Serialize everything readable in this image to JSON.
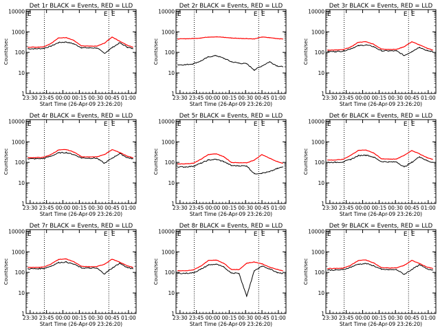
{
  "x_tick_labels": [
    "23:30",
    "23:45",
    "00:00",
    "00:15",
    "00:30",
    "00:45",
    "01:00"
  ],
  "y_tick_labels": [
    "1",
    "10",
    "100",
    "1000",
    "10000"
  ],
  "xlabel": "Start Time (26-Apr-09 23:26:20)",
  "ylabel": "Counts/sec",
  "marker_labels": [
    "E",
    "E",
    "E"
  ],
  "colors": {
    "events": "#000000",
    "lld": "#ff0000",
    "dotted": "#000000"
  },
  "chart_data": [
    {
      "type": "line",
      "title": "Det 1r BLACK = Events, RED = LLD",
      "xlim": [
        "23:26:20",
        "01:07:00"
      ],
      "ylim": [
        1,
        12000
      ],
      "yscale": "log",
      "x": [
        "23:28",
        "23:35",
        "23:42",
        "23:49",
        "23:56",
        "00:03",
        "00:10",
        "00:17",
        "00:24",
        "00:31",
        "00:38",
        "00:45",
        "00:52",
        "00:59",
        "01:04"
      ],
      "series": [
        {
          "name": "Events",
          "values": [
            150,
            150,
            155,
            200,
            300,
            320,
            260,
            170,
            165,
            165,
            90,
            170,
            290,
            180,
            150
          ]
        },
        {
          "name": "LLD",
          "values": [
            180,
            180,
            185,
            270,
            500,
            530,
            380,
            205,
            200,
            200,
            280,
            560,
            350,
            220,
            180
          ]
        }
      ]
    },
    {
      "type": "line",
      "title": "Det 2r BLACK = Events, RED = LLD",
      "xlim": [
        "23:26:20",
        "01:07:00"
      ],
      "ylim": [
        1,
        12000
      ],
      "yscale": "log",
      "x": [
        "23:28",
        "23:35",
        "23:42",
        "23:49",
        "23:56",
        "00:03",
        "00:10",
        "00:17",
        "00:24",
        "00:31",
        "00:38",
        "00:45",
        "00:52",
        "00:59",
        "01:04"
      ],
      "series": [
        {
          "name": "Events",
          "values": [
            25,
            25,
            28,
            38,
            60,
            70,
            52,
            35,
            30,
            28,
            14,
            22,
            35,
            22,
            20
          ]
        },
        {
          "name": "LLD",
          "values": [
            450,
            460,
            470,
            500,
            560,
            570,
            540,
            500,
            480,
            470,
            450,
            560,
            520,
            470,
            450
          ]
        }
      ]
    },
    {
      "type": "line",
      "title": "Det 3r BLACK = Events, RED = LLD",
      "xlim": [
        "23:26:20",
        "01:07:00"
      ],
      "ylim": [
        1,
        12000
      ],
      "yscale": "log",
      "x": [
        "23:28",
        "23:35",
        "23:42",
        "23:49",
        "23:56",
        "00:03",
        "00:10",
        "00:17",
        "00:24",
        "00:31",
        "00:38",
        "00:45",
        "00:52",
        "00:59",
        "01:04"
      ],
      "series": [
        {
          "name": "Events",
          "values": [
            110,
            110,
            115,
            150,
            210,
            230,
            190,
            120,
            118,
            118,
            70,
            110,
            180,
            120,
            110
          ]
        },
        {
          "name": "LLD",
          "values": [
            130,
            130,
            135,
            180,
            310,
            330,
            250,
            145,
            140,
            140,
            190,
            330,
            230,
            160,
            130
          ]
        }
      ]
    },
    {
      "type": "line",
      "title": "Det 4r BLACK = Events, RED = LLD",
      "xlim": [
        "23:26:20",
        "01:07:00"
      ],
      "ylim": [
        1,
        12000
      ],
      "yscale": "log",
      "x": [
        "23:28",
        "23:35",
        "23:42",
        "23:49",
        "23:56",
        "00:03",
        "00:10",
        "00:17",
        "00:24",
        "00:31",
        "00:38",
        "00:45",
        "00:52",
        "00:59",
        "01:04"
      ],
      "series": [
        {
          "name": "Events",
          "values": [
            150,
            150,
            155,
            200,
            290,
            300,
            240,
            165,
            160,
            160,
            90,
            160,
            270,
            170,
            150
          ]
        },
        {
          "name": "LLD",
          "values": [
            170,
            170,
            175,
            240,
            400,
            420,
            320,
            190,
            185,
            185,
            240,
            420,
            300,
            200,
            170
          ]
        }
      ]
    },
    {
      "type": "line",
      "title": "Det 5r BLACK = Events, RED = LLD",
      "xlim": [
        "23:26:20",
        "01:07:00"
      ],
      "ylim": [
        1,
        12000
      ],
      "yscale": "log",
      "x": [
        "23:28",
        "23:35",
        "23:42",
        "23:49",
        "23:56",
        "00:03",
        "00:10",
        "00:17",
        "00:24",
        "00:31",
        "00:38",
        "00:45",
        "00:52",
        "00:59",
        "01:04"
      ],
      "series": [
        {
          "name": "Events",
          "values": [
            60,
            60,
            65,
            90,
            130,
            140,
            110,
            70,
            68,
            68,
            28,
            30,
            35,
            50,
            60
          ]
        },
        {
          "name": "LLD",
          "values": [
            85,
            85,
            90,
            140,
            240,
            260,
            190,
            100,
            95,
            95,
            130,
            240,
            160,
            110,
            90
          ]
        }
      ]
    },
    {
      "type": "line",
      "title": "Det 6r BLACK = Events, RED = LLD",
      "xlim": [
        "23:26:20",
        "01:07:00"
      ],
      "ylim": [
        1,
        12000
      ],
      "yscale": "log",
      "x": [
        "23:28",
        "23:35",
        "23:42",
        "23:49",
        "23:56",
        "00:03",
        "00:10",
        "00:17",
        "00:24",
        "00:31",
        "00:38",
        "00:45",
        "00:52",
        "00:59",
        "01:04"
      ],
      "series": [
        {
          "name": "Events",
          "values": [
            100,
            100,
            105,
            140,
            210,
            230,
            180,
            110,
            105,
            105,
            60,
            100,
            190,
            120,
            100
          ]
        },
        {
          "name": "LLD",
          "values": [
            130,
            130,
            140,
            220,
            380,
            400,
            290,
            150,
            145,
            145,
            220,
            380,
            260,
            170,
            140
          ]
        }
      ]
    },
    {
      "type": "line",
      "title": "Det 7r BLACK = Events, RED = LLD",
      "xlim": [
        "23:26:20",
        "01:07:00"
      ],
      "ylim": [
        1,
        12000
      ],
      "yscale": "log",
      "x": [
        "23:28",
        "23:35",
        "23:42",
        "23:49",
        "23:56",
        "00:03",
        "00:10",
        "00:17",
        "00:24",
        "00:31",
        "00:38",
        "00:45",
        "00:52",
        "00:59",
        "01:04"
      ],
      "series": [
        {
          "name": "Events",
          "values": [
            150,
            150,
            155,
            200,
            300,
            320,
            250,
            165,
            160,
            160,
            85,
            160,
            280,
            170,
            150
          ]
        },
        {
          "name": "LLD",
          "values": [
            175,
            175,
            180,
            250,
            430,
            450,
            330,
            195,
            190,
            190,
            250,
            440,
            310,
            210,
            175
          ]
        }
      ]
    },
    {
      "type": "line",
      "title": "Det 8r BLACK = Events, RED = LLD",
      "xlim": [
        "23:26:20",
        "01:07:00"
      ],
      "ylim": [
        1,
        12000
      ],
      "yscale": "log",
      "x": [
        "23:28",
        "23:35",
        "23:42",
        "23:49",
        "23:56",
        "00:03",
        "00:10",
        "00:17",
        "00:24",
        "00:31",
        "00:38",
        "00:45",
        "00:52",
        "00:59",
        "01:04"
      ],
      "series": [
        {
          "name": "Events",
          "values": [
            90,
            90,
            95,
            140,
            230,
            250,
            180,
            95,
            90,
            7,
            120,
            200,
            150,
            100,
            90
          ]
        },
        {
          "name": "LLD",
          "values": [
            120,
            120,
            130,
            200,
            380,
            400,
            280,
            140,
            135,
            280,
            320,
            260,
            180,
            140,
            120
          ]
        }
      ]
    },
    {
      "type": "line",
      "title": "Det 9r BLACK = Events, RED = LLD",
      "xlim": [
        "23:26:20",
        "01:07:00"
      ],
      "ylim": [
        1,
        12000
      ],
      "yscale": "log",
      "x": [
        "23:28",
        "23:35",
        "23:42",
        "23:49",
        "23:56",
        "00:03",
        "00:10",
        "00:17",
        "00:24",
        "00:31",
        "00:38",
        "00:45",
        "00:52",
        "00:59",
        "01:04"
      ],
      "series": [
        {
          "name": "Events",
          "values": [
            130,
            130,
            135,
            180,
            250,
            270,
            210,
            140,
            135,
            135,
            80,
            140,
            230,
            150,
            130
          ]
        },
        {
          "name": "LLD",
          "values": [
            155,
            155,
            160,
            220,
            380,
            400,
            290,
            170,
            165,
            165,
            220,
            380,
            270,
            180,
            155
          ]
        }
      ]
    }
  ]
}
